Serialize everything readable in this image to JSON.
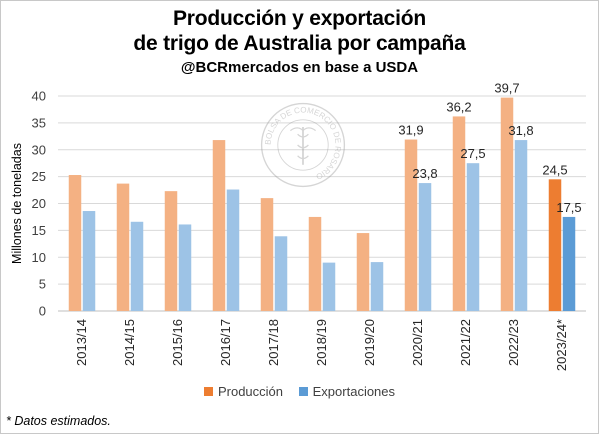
{
  "title": {
    "line1": "Producción y exportación",
    "line2": "de trigo de Australia por campaña",
    "subtitle": "@BCRmercados en base a USDA"
  },
  "footnote": "* Datos estimados.",
  "watermark": {
    "ring_text": "BOLSA DE COMERCIO DE ROSARIO",
    "icon": "caduceus-seal-icon"
  },
  "colors": {
    "produccion": "#F4B183",
    "exportaciones": "#9DC3E6",
    "produccion_est": "#ED7D31",
    "exportaciones_est": "#5B9BD5",
    "grid": "#d9d9d9",
    "axis_text": "#404040"
  },
  "chart_data": {
    "type": "bar",
    "categories": [
      "2013/14",
      "2014/15",
      "2015/16",
      "2016/17",
      "2017/18",
      "2018/19",
      "2019/20",
      "2020/21",
      "2021/22",
      "2022/23",
      "2023/24*"
    ],
    "series": [
      {
        "name": "Producción",
        "values": [
          25.3,
          23.7,
          22.3,
          31.8,
          21.0,
          17.5,
          14.5,
          31.9,
          36.2,
          39.7,
          24.5
        ]
      },
      {
        "name": "Exportaciones",
        "values": [
          18.6,
          16.6,
          16.1,
          22.6,
          13.9,
          9.0,
          9.1,
          23.8,
          27.5,
          31.8,
          17.5
        ]
      }
    ],
    "data_labels": {
      "Producción": [
        null,
        null,
        null,
        null,
        null,
        null,
        null,
        "31,9",
        "36,2",
        "39,7",
        "24,5"
      ],
      "Exportaciones": [
        null,
        null,
        null,
        null,
        null,
        null,
        null,
        "23,8",
        "27,5",
        "31,8",
        "17,5"
      ]
    },
    "highlighted_category": "2023/24*",
    "ylabel": "Millones de toneladas",
    "xlabel": "",
    "ylim": [
      0,
      40
    ],
    "yticks": [
      0,
      5,
      10,
      15,
      20,
      25,
      30,
      35,
      40
    ],
    "grid": true,
    "legend_position": "bottom"
  }
}
